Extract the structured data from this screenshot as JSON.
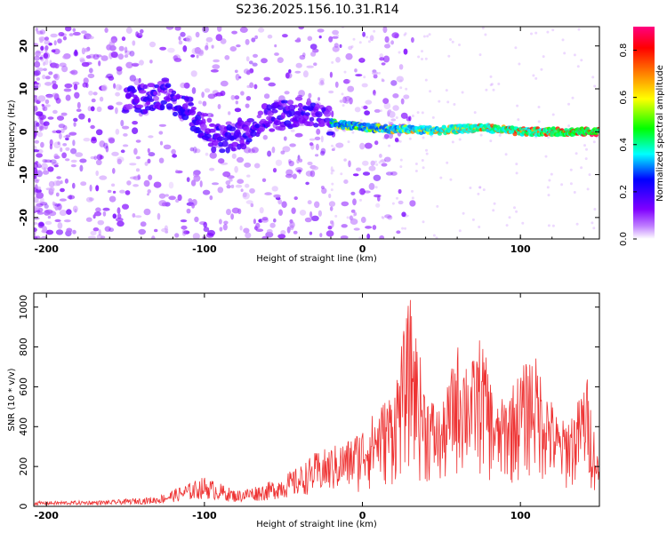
{
  "title": "S236.2025.156.10.31.R14",
  "chart_data": [
    {
      "type": "heatmap",
      "xlabel": "Height of straight line (km)",
      "ylabel": "Frequency (Hz)",
      "xlim": [
        -208,
        150
      ],
      "ylim": [
        -25,
        24.5
      ],
      "x_ticks": [
        -200,
        -100,
        0,
        100
      ],
      "y_ticks": [
        -20,
        -10,
        0,
        10,
        20
      ],
      "colorbar": {
        "label": "Normalized spectral amplitude",
        "range": [
          0,
          0.9
        ],
        "ticks": [
          0.0,
          0.2,
          0.4,
          0.6,
          0.8
        ],
        "colormap": [
          "#ffffff",
          "#8000ff",
          "#0000ff",
          "#00ffff",
          "#00ff00",
          "#ffff00",
          "#ff8000",
          "#ff0000",
          "#ff00a0"
        ]
      },
      "ridge_center_hz": [
        {
          "x": -145,
          "y": 7
        },
        {
          "x": -125,
          "y": 9
        },
        {
          "x": -110,
          "y": 5
        },
        {
          "x": -95,
          "y": -1
        },
        {
          "x": -80,
          "y": -2
        },
        {
          "x": -65,
          "y": 3
        },
        {
          "x": -50,
          "y": 4
        },
        {
          "x": -35,
          "y": 5
        },
        {
          "x": -20,
          "y": 2
        },
        {
          "x": 0,
          "y": 1
        },
        {
          "x": 25,
          "y": 0.5
        },
        {
          "x": 50,
          "y": 0.3
        },
        {
          "x": 75,
          "y": 1
        },
        {
          "x": 100,
          "y": 0
        },
        {
          "x": 125,
          "y": 0
        },
        {
          "x": 150,
          "y": 0
        }
      ]
    },
    {
      "type": "line",
      "xlabel": "Height of straight line (km)",
      "ylabel": "SNR (10 * v/v)",
      "xlim": [
        -208,
        150
      ],
      "ylim": [
        0,
        1070
      ],
      "x_ticks": [
        -200,
        -100,
        0,
        100
      ],
      "y_ticks": [
        0,
        200,
        400,
        600,
        800,
        1000
      ],
      "series": [
        {
          "color": "#ee3333",
          "envelope": [
            {
              "x": -208,
              "y": 25
            },
            {
              "x": -160,
              "y": 30
            },
            {
              "x": -130,
              "y": 50
            },
            {
              "x": -100,
              "y": 150
            },
            {
              "x": -80,
              "y": 80
            },
            {
              "x": -60,
              "y": 120
            },
            {
              "x": -40,
              "y": 200
            },
            {
              "x": -30,
              "y": 270
            },
            {
              "x": -20,
              "y": 300
            },
            {
              "x": -10,
              "y": 330
            },
            {
              "x": 0,
              "y": 400
            },
            {
              "x": 10,
              "y": 500
            },
            {
              "x": 20,
              "y": 600
            },
            {
              "x": 30,
              "y": 1060
            },
            {
              "x": 40,
              "y": 600
            },
            {
              "x": 50,
              "y": 480
            },
            {
              "x": 60,
              "y": 820
            },
            {
              "x": 70,
              "y": 740
            },
            {
              "x": 75,
              "y": 870
            },
            {
              "x": 85,
              "y": 500
            },
            {
              "x": 95,
              "y": 620
            },
            {
              "x": 108,
              "y": 790
            },
            {
              "x": 115,
              "y": 640
            },
            {
              "x": 125,
              "y": 420
            },
            {
              "x": 135,
              "y": 500
            },
            {
              "x": 142,
              "y": 670
            },
            {
              "x": 150,
              "y": 200
            }
          ]
        }
      ]
    }
  ]
}
